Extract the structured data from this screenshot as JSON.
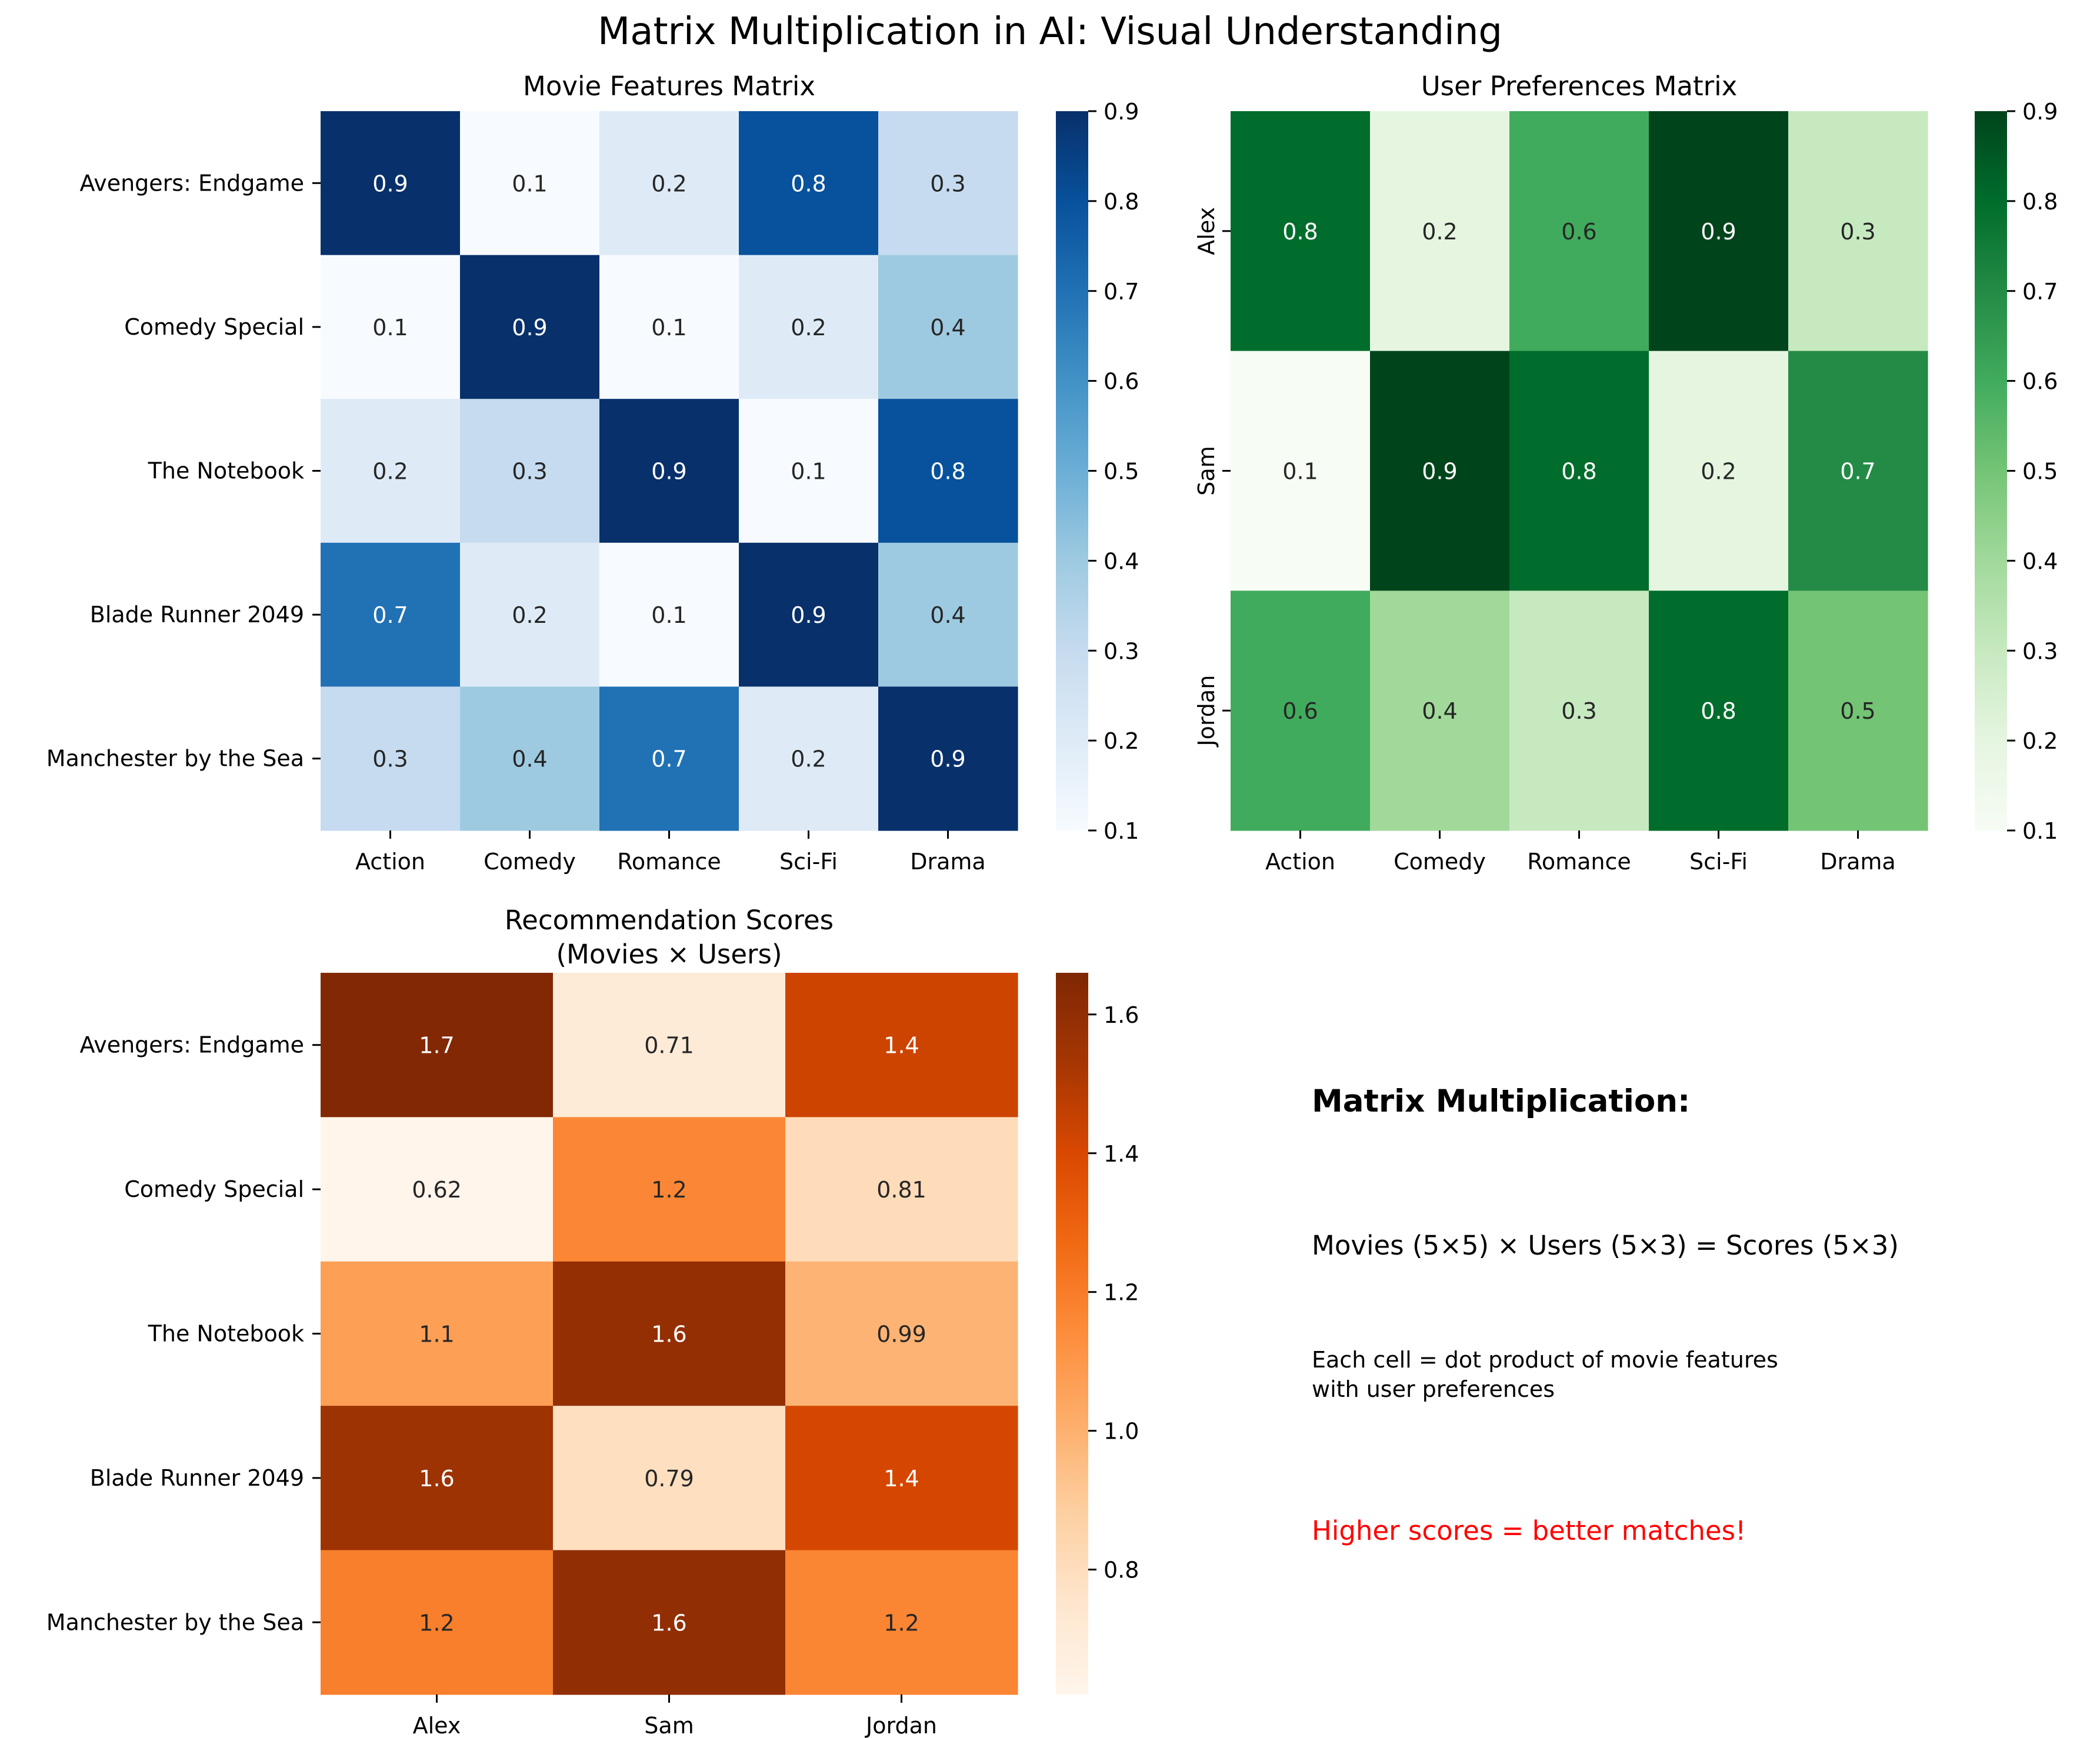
{
  "figure_title": "Matrix Multiplication in AI: Visual Understanding",
  "chart_data": [
    {
      "type": "heatmap",
      "title": "Movie Features Matrix",
      "rows": [
        "Avengers: Endgame",
        "Comedy Special",
        "The Notebook",
        "Blade Runner 2049",
        "Manchester by the Sea"
      ],
      "cols": [
        "Action",
        "Comedy",
        "Romance",
        "Sci-Fi",
        "Drama"
      ],
      "values": [
        [
          0.9,
          0.1,
          0.2,
          0.8,
          0.3
        ],
        [
          0.1,
          0.9,
          0.1,
          0.2,
          0.4
        ],
        [
          0.2,
          0.3,
          0.9,
          0.1,
          0.8
        ],
        [
          0.7,
          0.2,
          0.1,
          0.9,
          0.4
        ],
        [
          0.3,
          0.4,
          0.7,
          0.2,
          0.9
        ]
      ],
      "labels": [
        [
          "0.9",
          "0.1",
          "0.2",
          "0.8",
          "0.3"
        ],
        [
          "0.1",
          "0.9",
          "0.1",
          "0.2",
          "0.4"
        ],
        [
          "0.2",
          "0.3",
          "0.9",
          "0.1",
          "0.8"
        ],
        [
          "0.7",
          "0.2",
          "0.1",
          "0.9",
          "0.4"
        ],
        [
          "0.3",
          "0.4",
          "0.7",
          "0.2",
          "0.9"
        ]
      ],
      "colormap": "Blues",
      "vmin": 0.1,
      "vmax": 0.9,
      "colorbar_ticks": [
        0.1,
        0.2,
        0.3,
        0.4,
        0.5,
        0.6,
        0.7,
        0.8,
        0.9
      ],
      "colorbar_tick_labels": [
        "0.1",
        "0.2",
        "0.3",
        "0.4",
        "0.5",
        "0.6",
        "0.7",
        "0.8",
        "0.9"
      ],
      "ylabel_rotated": false
    },
    {
      "type": "heatmap",
      "title": "User Preferences Matrix",
      "rows": [
        "Alex",
        "Sam",
        "Jordan"
      ],
      "cols": [
        "Action",
        "Comedy",
        "Romance",
        "Sci-Fi",
        "Drama"
      ],
      "values": [
        [
          0.8,
          0.2,
          0.6,
          0.9,
          0.3
        ],
        [
          0.1,
          0.9,
          0.8,
          0.2,
          0.7
        ],
        [
          0.6,
          0.4,
          0.3,
          0.8,
          0.5
        ]
      ],
      "labels": [
        [
          "0.8",
          "0.2",
          "0.6",
          "0.9",
          "0.3"
        ],
        [
          "0.1",
          "0.9",
          "0.8",
          "0.2",
          "0.7"
        ],
        [
          "0.6",
          "0.4",
          "0.3",
          "0.8",
          "0.5"
        ]
      ],
      "colormap": "Greens",
      "vmin": 0.1,
      "vmax": 0.9,
      "colorbar_ticks": [
        0.1,
        0.2,
        0.3,
        0.4,
        0.5,
        0.6,
        0.7,
        0.8,
        0.9
      ],
      "colorbar_tick_labels": [
        "0.1",
        "0.2",
        "0.3",
        "0.4",
        "0.5",
        "0.6",
        "0.7",
        "0.8",
        "0.9"
      ],
      "ylabel_rotated": true
    },
    {
      "type": "heatmap",
      "title": "Recommendation Scores",
      "subtitle": "(Movies × Users)",
      "rows": [
        "Avengers: Endgame",
        "Comedy Special",
        "The Notebook",
        "Blade Runner 2049",
        "Manchester by the Sea"
      ],
      "cols": [
        "Alex",
        "Sam",
        "Jordan"
      ],
      "values": [
        [
          1.65,
          0.71,
          1.43
        ],
        [
          0.62,
          1.16,
          0.81
        ],
        [
          1.07,
          1.59,
          0.99
        ],
        [
          1.56,
          0.79,
          1.41
        ],
        [
          1.19,
          1.6,
          1.17
        ]
      ],
      "labels": [
        [
          "1.7",
          "0.71",
          "1.4"
        ],
        [
          "0.62",
          "1.2",
          "0.81"
        ],
        [
          "1.1",
          "1.6",
          "0.99"
        ],
        [
          "1.6",
          "0.79",
          "1.4"
        ],
        [
          "1.2",
          "1.6",
          "1.2"
        ]
      ],
      "colormap": "Oranges",
      "vmin": 0.62,
      "vmax": 1.66,
      "colorbar_ticks": [
        0.8,
        1.0,
        1.2,
        1.4,
        1.6
      ],
      "colorbar_tick_labels": [
        "0.8",
        "1.0",
        "1.2",
        "1.4",
        "1.6"
      ],
      "ylabel_rotated": false
    }
  ],
  "explanation": {
    "heading": "Matrix Multiplication:",
    "formula": "Movies (5×5) × Users (5×3) = Scores (5×3)",
    "description_line1": "Each cell = dot product of movie features",
    "description_line2": "with user preferences",
    "highlight": "Higher scores = better matches!",
    "highlight_color": "#ff0000"
  }
}
